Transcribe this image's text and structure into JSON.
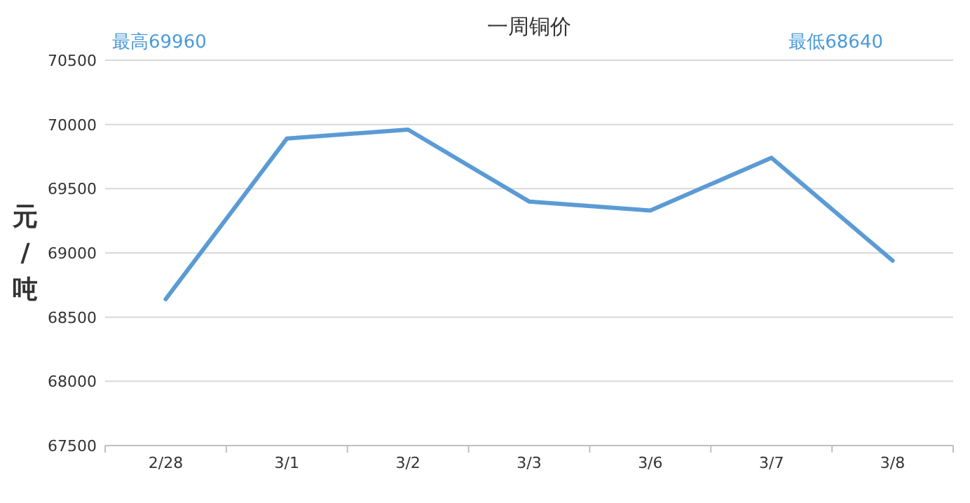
{
  "chart_data": {
    "type": "line",
    "title": "一周铜价",
    "ylabel": "元/吨",
    "annotations": [
      "最高69960",
      "最低68640"
    ],
    "categories": [
      "2/28",
      "3/1",
      "3/2",
      "3/3",
      "3/6",
      "3/7",
      "3/8"
    ],
    "series": [
      {
        "color": "#5b9bd5",
        "values": [
          68640,
          69890,
          69960,
          69400,
          69330,
          69740,
          68940
        ]
      }
    ],
    "ylim": [
      67500,
      70500
    ],
    "yticks": [
      67500,
      68000,
      68500,
      69000,
      69500,
      70000,
      70500
    ],
    "grid": "y",
    "marker": "none",
    "line_style": "solid"
  }
}
